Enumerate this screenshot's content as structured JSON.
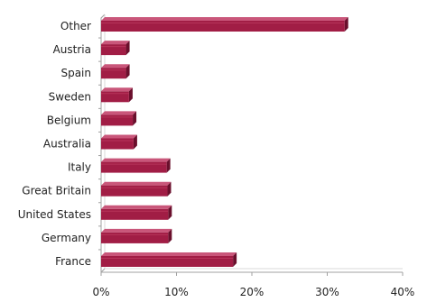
{
  "chart_data": {
    "type": "bar",
    "orientation": "horizontal",
    "categories": [
      "Other",
      "Austria",
      "Spain",
      "Sweden",
      "Belgium",
      "Australia",
      "Italy",
      "Great Britain",
      "United States",
      "Germany",
      "France"
    ],
    "values": [
      32.3,
      3.3,
      3.3,
      3.7,
      4.2,
      4.3,
      8.7,
      8.8,
      8.9,
      8.9,
      17.5
    ],
    "value_unit": "%",
    "xlim": [
      0,
      40
    ],
    "x_ticks": [
      "0%",
      "10%",
      "20%",
      "30%",
      "40%"
    ],
    "title": "",
    "xlabel": "",
    "ylabel": "",
    "grid": false,
    "legend": "none",
    "style": "3d-bars",
    "colors": {
      "bar_front": "#a11d45",
      "bar_top": "#c9567a",
      "bar_side": "#6a0f2c",
      "axis": "#a0a0a0",
      "text": "#222222"
    }
  }
}
